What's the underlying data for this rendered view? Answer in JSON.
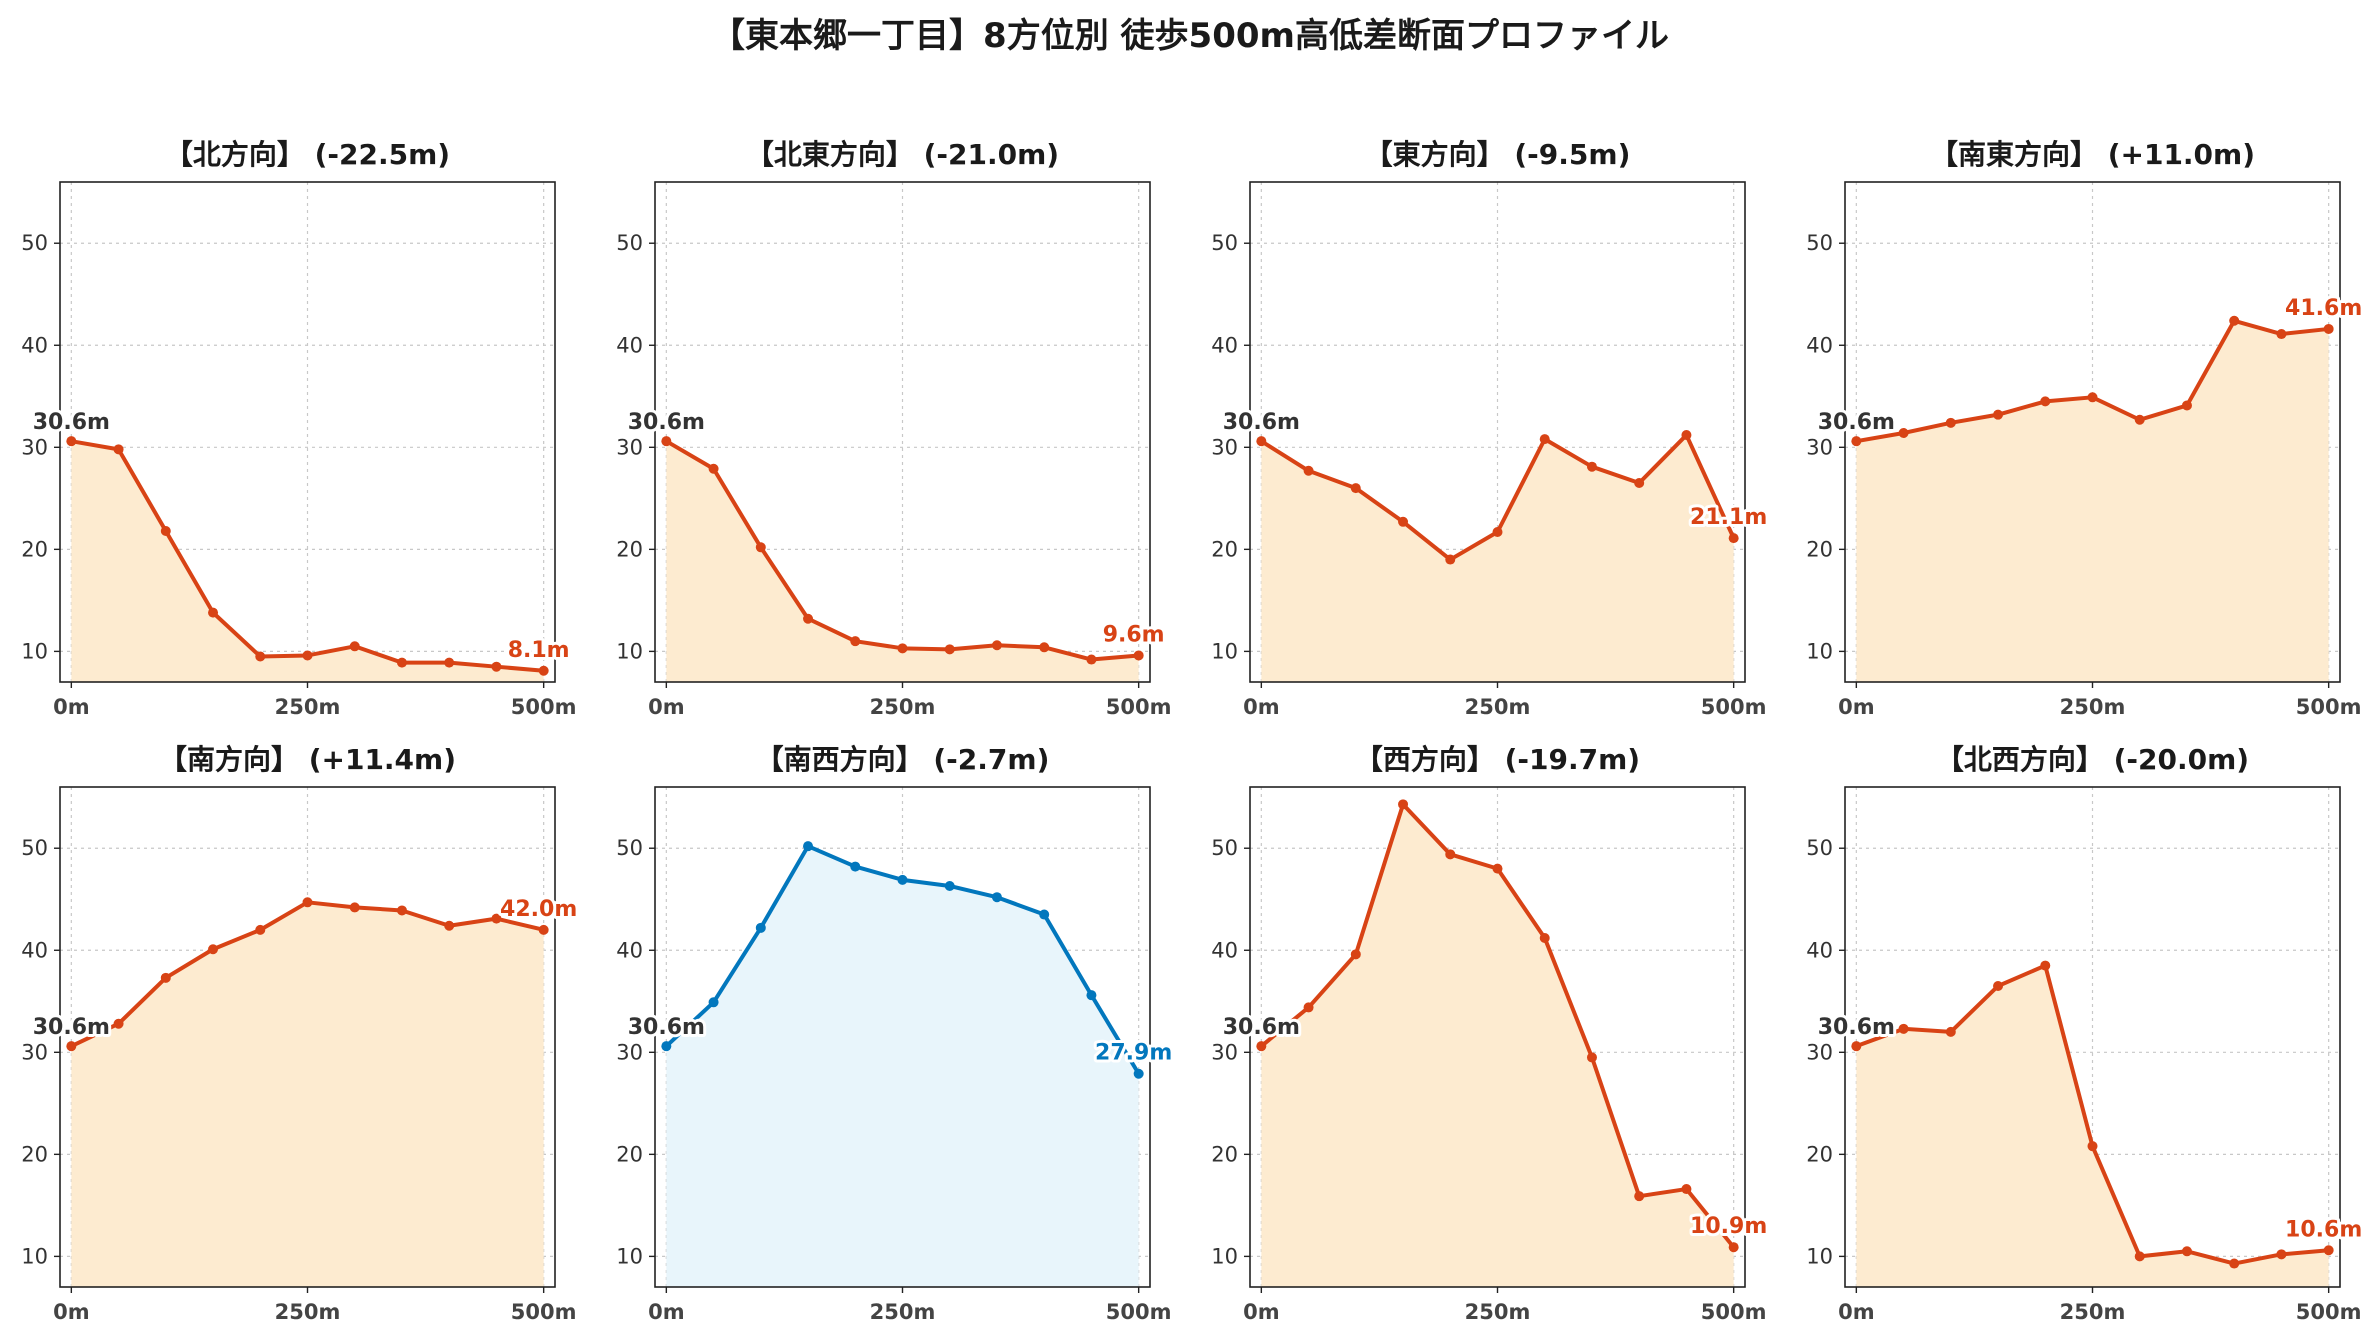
{
  "figure_title": "【東本郷一丁目】8方位別 徒歩500m高低差断面プロファイル",
  "colors": {
    "down_line": "#D84315",
    "down_fill": "#FDEBD0",
    "up_line": "#0277BD",
    "up_fill": "#E8F5FB",
    "start_label": "#333333",
    "grid": "#c8c8c8"
  },
  "chart_data": [
    {
      "type": "area",
      "title": "【北方向】 (-22.5m)",
      "x": [
        0,
        50,
        100,
        150,
        200,
        250,
        300,
        350,
        400,
        450,
        500
      ],
      "xtick_labels": [
        "0m",
        "250m",
        "500m"
      ],
      "xticks": [
        0,
        250,
        500
      ],
      "yticks": [
        10,
        20,
        30,
        40,
        50
      ],
      "ylim": [
        7,
        56
      ],
      "xlim": [
        -12,
        512
      ],
      "grid": true,
      "values": [
        30.6,
        29.8,
        21.8,
        13.8,
        9.5,
        9.6,
        10.5,
        8.9,
        8.9,
        8.5,
        8.1
      ],
      "start_label": "30.6m",
      "end_label": "8.1m",
      "style": "down"
    },
    {
      "type": "area",
      "title": "【北東方向】 (-21.0m)",
      "x": [
        0,
        50,
        100,
        150,
        200,
        250,
        300,
        350,
        400,
        450,
        500
      ],
      "xtick_labels": [
        "0m",
        "250m",
        "500m"
      ],
      "xticks": [
        0,
        250,
        500
      ],
      "yticks": [
        10,
        20,
        30,
        40,
        50
      ],
      "ylim": [
        7,
        56
      ],
      "xlim": [
        -12,
        512
      ],
      "grid": true,
      "values": [
        30.6,
        27.9,
        20.2,
        13.2,
        11.0,
        10.3,
        10.2,
        10.6,
        10.4,
        9.2,
        9.6
      ],
      "start_label": "30.6m",
      "end_label": "9.6m",
      "style": "down"
    },
    {
      "type": "area",
      "title": "【東方向】 (-9.5m)",
      "x": [
        0,
        50,
        100,
        150,
        200,
        250,
        300,
        350,
        400,
        450,
        500
      ],
      "xtick_labels": [
        "0m",
        "250m",
        "500m"
      ],
      "xticks": [
        0,
        250,
        500
      ],
      "yticks": [
        10,
        20,
        30,
        40,
        50
      ],
      "ylim": [
        7,
        56
      ],
      "xlim": [
        -12,
        512
      ],
      "grid": true,
      "values": [
        30.6,
        27.7,
        26.0,
        22.7,
        19.0,
        21.7,
        30.8,
        28.1,
        26.5,
        31.2,
        21.1
      ],
      "start_label": "30.6m",
      "end_label": "21.1m",
      "style": "down"
    },
    {
      "type": "area",
      "title": "【南東方向】 (+11.0m)",
      "x": [
        0,
        50,
        100,
        150,
        200,
        250,
        300,
        350,
        400,
        450,
        500
      ],
      "xtick_labels": [
        "0m",
        "250m",
        "500m"
      ],
      "xticks": [
        0,
        250,
        500
      ],
      "yticks": [
        10,
        20,
        30,
        40,
        50
      ],
      "ylim": [
        7,
        56
      ],
      "xlim": [
        -12,
        512
      ],
      "grid": true,
      "values": [
        30.6,
        31.4,
        32.4,
        33.2,
        34.5,
        34.9,
        32.7,
        34.1,
        42.4,
        41.1,
        41.6
      ],
      "start_label": "30.6m",
      "end_label": "41.6m",
      "style": "down"
    },
    {
      "type": "area",
      "title": "【南方向】 (+11.4m)",
      "x": [
        0,
        50,
        100,
        150,
        200,
        250,
        300,
        350,
        400,
        450,
        500
      ],
      "xtick_labels": [
        "0m",
        "250m",
        "500m"
      ],
      "xticks": [
        0,
        250,
        500
      ],
      "yticks": [
        10,
        20,
        30,
        40,
        50
      ],
      "ylim": [
        7,
        56
      ],
      "xlim": [
        -12,
        512
      ],
      "grid": true,
      "values": [
        30.6,
        32.8,
        37.3,
        40.1,
        42.0,
        44.7,
        44.2,
        43.9,
        42.4,
        43.1,
        42.0
      ],
      "start_label": "30.6m",
      "end_label": "42.0m",
      "style": "down"
    },
    {
      "type": "area",
      "title": "【南西方向】 (-2.7m)",
      "x": [
        0,
        50,
        100,
        150,
        200,
        250,
        300,
        350,
        400,
        450,
        500
      ],
      "xtick_labels": [
        "0m",
        "250m",
        "500m"
      ],
      "xticks": [
        0,
        250,
        500
      ],
      "yticks": [
        10,
        20,
        30,
        40,
        50
      ],
      "ylim": [
        7,
        56
      ],
      "xlim": [
        -12,
        512
      ],
      "grid": true,
      "values": [
        30.6,
        34.9,
        42.2,
        50.2,
        48.2,
        46.9,
        46.3,
        45.2,
        43.5,
        35.6,
        27.9
      ],
      "start_label": "30.6m",
      "end_label": "27.9m",
      "style": "up"
    },
    {
      "type": "area",
      "title": "【西方向】 (-19.7m)",
      "x": [
        0,
        50,
        100,
        150,
        200,
        250,
        300,
        350,
        400,
        450,
        500
      ],
      "xtick_labels": [
        "0m",
        "250m",
        "500m"
      ],
      "xticks": [
        0,
        250,
        500
      ],
      "yticks": [
        10,
        20,
        30,
        40,
        50
      ],
      "ylim": [
        7,
        56
      ],
      "xlim": [
        -12,
        512
      ],
      "grid": true,
      "values": [
        30.6,
        34.4,
        39.6,
        54.3,
        49.4,
        48.0,
        41.2,
        29.5,
        15.9,
        16.6,
        10.9
      ],
      "start_label": "30.6m",
      "end_label": "10.9m",
      "style": "down"
    },
    {
      "type": "area",
      "title": "【北西方向】 (-20.0m)",
      "x": [
        0,
        50,
        100,
        150,
        200,
        250,
        300,
        350,
        400,
        450,
        500
      ],
      "xtick_labels": [
        "0m",
        "250m",
        "500m"
      ],
      "xticks": [
        0,
        250,
        500
      ],
      "yticks": [
        10,
        20,
        30,
        40,
        50
      ],
      "ylim": [
        7,
        56
      ],
      "xlim": [
        -12,
        512
      ],
      "grid": true,
      "values": [
        30.6,
        32.3,
        32.0,
        36.5,
        38.5,
        20.8,
        10.0,
        10.5,
        9.3,
        10.2,
        10.6
      ],
      "start_label": "30.6m",
      "end_label": "10.6m",
      "style": "down"
    }
  ]
}
